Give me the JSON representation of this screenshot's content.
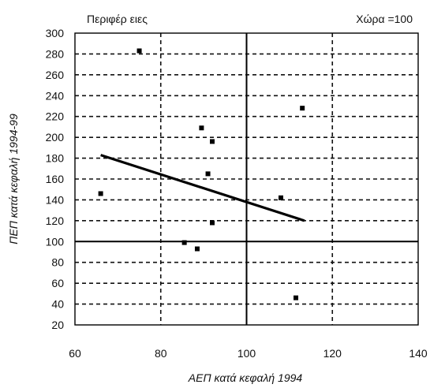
{
  "chart_data": {
    "type": "scatter",
    "title_left": "Περιφέρ ειες",
    "title_right": "Χώρα =100",
    "xlabel": "ΑΕΠ κατά κεφαλή 1994",
    "ylabel": "ΠΕΠ κατά κεφαλή 1994-99",
    "xlim": [
      60,
      140
    ],
    "ylim": [
      20,
      300
    ],
    "xticks": [
      60,
      80,
      100,
      120,
      140
    ],
    "yticks": [
      20,
      40,
      60,
      80,
      100,
      120,
      140,
      160,
      180,
      200,
      220,
      240,
      260,
      280,
      300
    ],
    "x_grid": [
      80,
      120
    ],
    "y_grid": [
      40,
      60,
      80,
      120,
      140,
      160,
      180,
      200,
      220,
      240,
      260,
      280
    ],
    "reference_lines": {
      "x": 100,
      "y": 100
    },
    "grid": true,
    "points": [
      {
        "x": 75,
        "y": 283
      },
      {
        "x": 113,
        "y": 228
      },
      {
        "x": 89.5,
        "y": 209
      },
      {
        "x": 92,
        "y": 196
      },
      {
        "x": 91,
        "y": 165
      },
      {
        "x": 66,
        "y": 146
      },
      {
        "x": 108,
        "y": 142
      },
      {
        "x": 92,
        "y": 118
      },
      {
        "x": 85.5,
        "y": 99
      },
      {
        "x": 88.5,
        "y": 93
      },
      {
        "x": 111.5,
        "y": 46
      }
    ],
    "trendline": {
      "x": [
        66,
        113.5
      ],
      "y": [
        183,
        120
      ]
    }
  }
}
